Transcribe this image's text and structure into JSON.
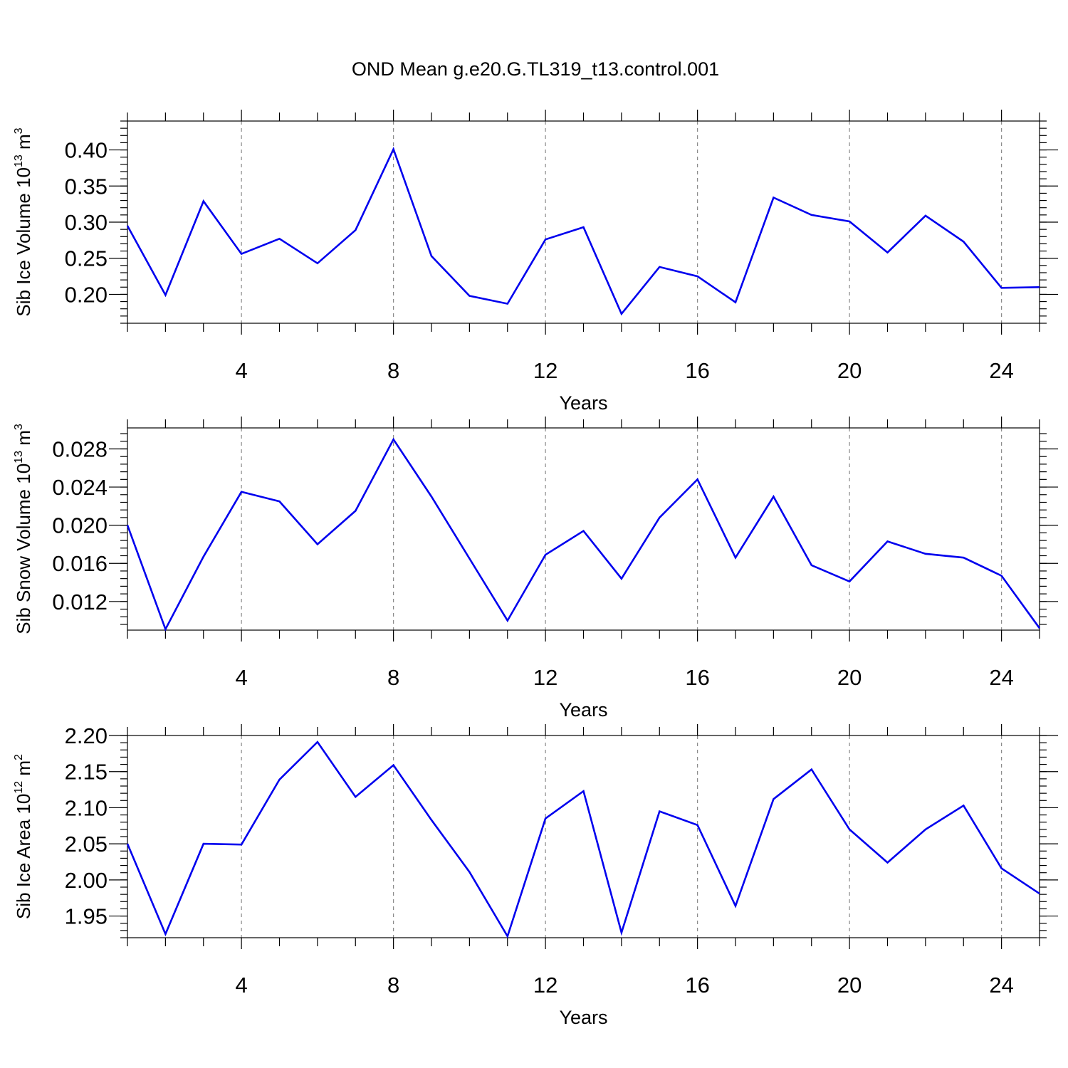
{
  "title": "OND Mean g.e20.G.TL319_t13.control.001",
  "colors": {
    "series": "#0000ee",
    "grid": "#8a8a8a",
    "axis": "#000000"
  },
  "chart_data": [
    {
      "type": "line",
      "xlabel": "Years",
      "ylabel": {
        "main": "Sib Ice Volume 10",
        "exp": "13",
        "unit": " m",
        "unit_exp": "3"
      },
      "xlim": [
        1,
        25
      ],
      "ylim": [
        0.16,
        0.44
      ],
      "xticks": [
        4,
        8,
        12,
        16,
        20,
        24
      ],
      "yticks": [
        0.2,
        0.25,
        0.3,
        0.35,
        0.4
      ],
      "ytick_labels": [
        "0.20",
        "0.25",
        "0.30",
        "0.35",
        "0.40"
      ],
      "yminor_step": 0.01,
      "grid": "vertical-dashed",
      "x": [
        1,
        2,
        3,
        4,
        5,
        6,
        7,
        8,
        9,
        10,
        11,
        12,
        13,
        14,
        15,
        16,
        17,
        18,
        19,
        20,
        21,
        22,
        23,
        24,
        25
      ],
      "values": [
        0.295,
        0.199,
        0.329,
        0.256,
        0.277,
        0.243,
        0.289,
        0.401,
        0.253,
        0.198,
        0.187,
        0.276,
        0.293,
        0.173,
        0.238,
        0.225,
        0.189,
        0.334,
        0.31,
        0.301,
        0.258,
        0.309,
        0.273,
        0.209,
        0.21
      ]
    },
    {
      "type": "line",
      "xlabel": "Years",
      "ylabel": {
        "main": "Sib Snow Volume 10",
        "exp": "13",
        "unit": " m",
        "unit_exp": "3"
      },
      "xlim": [
        1,
        25
      ],
      "ylim": [
        0.009,
        0.0302
      ],
      "xticks": [
        4,
        8,
        12,
        16,
        20,
        24
      ],
      "yticks": [
        0.012,
        0.016,
        0.02,
        0.024,
        0.028
      ],
      "ytick_labels": [
        "0.012",
        "0.016",
        "0.020",
        "0.024",
        "0.028"
      ],
      "yminor_step": 0.0008,
      "grid": "vertical-dashed",
      "x": [
        1,
        2,
        3,
        4,
        5,
        6,
        7,
        8,
        9,
        10,
        11,
        12,
        13,
        14,
        15,
        16,
        17,
        18,
        19,
        20,
        21,
        22,
        23,
        24,
        25
      ],
      "values": [
        0.02,
        0.0091,
        0.0167,
        0.0235,
        0.0225,
        0.018,
        0.0215,
        0.029,
        0.023,
        0.0165,
        0.01,
        0.0169,
        0.0194,
        0.0144,
        0.0208,
        0.0248,
        0.0166,
        0.023,
        0.0158,
        0.0141,
        0.0183,
        0.017,
        0.0166,
        0.0147,
        0.0092
      ]
    },
    {
      "type": "line",
      "xlabel": "Years",
      "ylabel": {
        "main": "Sib Ice Area 10",
        "exp": "12",
        "unit": " m",
        "unit_exp": "2"
      },
      "xlim": [
        1,
        25
      ],
      "ylim": [
        1.92,
        2.2
      ],
      "xticks": [
        4,
        8,
        12,
        16,
        20,
        24
      ],
      "yticks": [
        1.95,
        2.0,
        2.05,
        2.1,
        2.15,
        2.2
      ],
      "ytick_labels": [
        "1.95",
        "2.00",
        "2.05",
        "2.10",
        "2.15",
        "2.20"
      ],
      "yminor_step": 0.01,
      "grid": "vertical-dashed",
      "x": [
        1,
        2,
        3,
        4,
        5,
        6,
        7,
        8,
        9,
        10,
        11,
        12,
        13,
        14,
        15,
        16,
        17,
        18,
        19,
        20,
        21,
        22,
        23,
        24,
        25
      ],
      "values": [
        2.05,
        1.925,
        2.05,
        2.049,
        2.139,
        2.191,
        2.115,
        2.159,
        2.083,
        2.011,
        1.922,
        2.085,
        2.123,
        1.927,
        2.095,
        2.076,
        1.964,
        2.112,
        2.153,
        2.07,
        2.024,
        2.07,
        2.103,
        2.016,
        1.981
      ]
    }
  ]
}
